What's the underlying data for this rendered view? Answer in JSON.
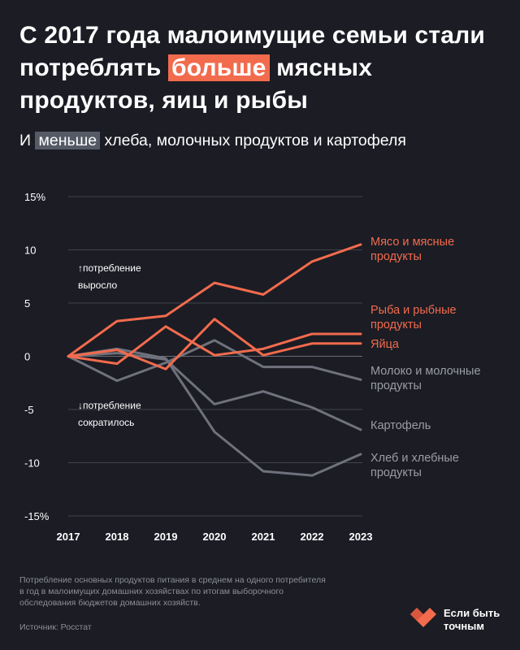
{
  "title": {
    "part1": "С 2017 года малоимущие семьи стали потреблять ",
    "highlight": "больше",
    "part2": " мясных продуктов, яиц и рыбы"
  },
  "subtitle": {
    "part1": "И ",
    "highlight": "меньше",
    "part2": " хлеба, молочных продуктов и картофеля"
  },
  "annotations": {
    "up": [
      "↑потребление",
      "выросло"
    ],
    "down": [
      "↓потребление",
      "сократилось"
    ]
  },
  "footnote": "Потребление основных продуктов питания в среднем на одного потребителя в год в малоимущих домашних хозяйствах по итогам выборочного обследования бюджетов домашних хозяйств.",
  "source": "Источник: Росстат",
  "logo": {
    "text": "Если быть точным",
    "icon": "heart-logo-icon"
  },
  "colors": {
    "background": "#1b1c24",
    "accent": "#f26b4d",
    "muted": "#6f727c",
    "grid": "#41434d",
    "text": "#ffffff"
  },
  "chart_data": {
    "type": "line",
    "x": [
      2017,
      2018,
      2019,
      2020,
      2021,
      2022,
      2023
    ],
    "ylim": [
      -15,
      15
    ],
    "yticks": [
      15,
      10,
      5,
      0,
      -5,
      -10,
      -15
    ],
    "ytick_labels": [
      "15%",
      "10",
      "5",
      "0",
      "-5",
      "-10",
      "-15%"
    ],
    "grid": true,
    "series": [
      {
        "name": "Мясо и мясные продукты",
        "label_lines": [
          "Мясо и мясные",
          "продукты"
        ],
        "color": "#f26b4d",
        "values": [
          0,
          3.3,
          3.8,
          6.9,
          5.8,
          8.9,
          10.5
        ]
      },
      {
        "name": "Рыба и рыбные продукты",
        "label_lines": [
          "Рыба и рыбные",
          "продукты"
        ],
        "color": "#f26b4d",
        "values": [
          0,
          -0.7,
          2.8,
          0.1,
          0.7,
          2.1,
          2.1
        ]
      },
      {
        "name": "Яйца",
        "label_lines": [
          "Яйца"
        ],
        "color": "#f26b4d",
        "values": [
          0,
          0.6,
          -1.2,
          3.5,
          0.1,
          1.2,
          1.2
        ]
      },
      {
        "name": "Молоко и молочные продукты",
        "label_lines": [
          "Молоко и молочные",
          "продукты"
        ],
        "color": "#6f727c",
        "values": [
          0,
          -2.3,
          -0.6,
          1.5,
          -1.0,
          -1.0,
          -2.2
        ]
      },
      {
        "name": "Картофель",
        "label_lines": [
          "Картофель"
        ],
        "color": "#6f727c",
        "values": [
          0,
          0.3,
          -0.3,
          -4.5,
          -3.3,
          -4.8,
          -6.9
        ]
      },
      {
        "name": "Хлеб и хлебные продукты",
        "label_lines": [
          "Хлеб и хлебные",
          "продукты"
        ],
        "color": "#6f727c",
        "values": [
          0,
          0.7,
          -0.2,
          -7.1,
          -10.8,
          -11.2,
          -9.2
        ]
      }
    ]
  }
}
